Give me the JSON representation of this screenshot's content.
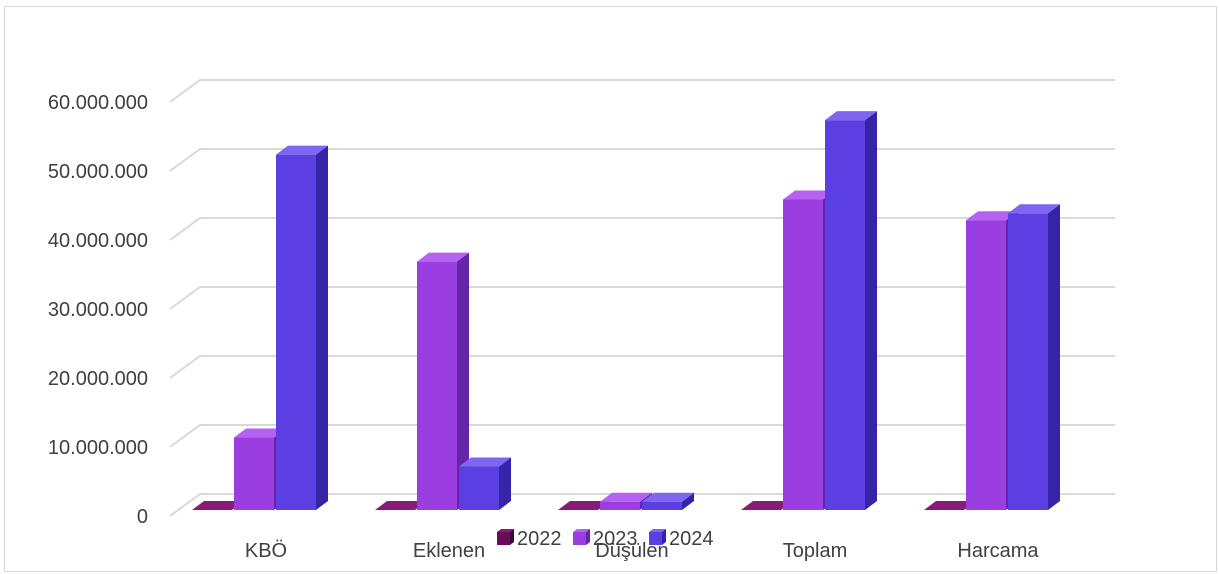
{
  "chart_data": {
    "type": "bar",
    "categories": [
      "KBÖ",
      "Eklenen",
      "Düşülen",
      "Toplam",
      "Harcama"
    ],
    "series": [
      {
        "name": "2022",
        "values": [
          0,
          0,
          0,
          0,
          0
        ]
      },
      {
        "name": "2023",
        "values": [
          10500000,
          36000000,
          1200000,
          45000000,
          42000000
        ]
      },
      {
        "name": "2024",
        "values": [
          51500000,
          6300000,
          1200000,
          56500000,
          43000000
        ]
      }
    ],
    "ylim": [
      0,
      60000000
    ],
    "yticks": [
      0,
      10000000,
      20000000,
      30000000,
      40000000,
      50000000,
      60000000
    ],
    "ytick_labels": [
      "0",
      "10.000.000",
      "20.000.000",
      "30.000.000",
      "40.000.000",
      "50.000.000",
      "60.000.000"
    ],
    "title": "",
    "xlabel": "",
    "ylabel": "",
    "grid": true,
    "legend_position": "bottom",
    "style": "3d-clustered-column",
    "colors": {
      "2022": {
        "front": "#6b0a5c",
        "side": "#3e0535",
        "top": "#8a1a78"
      },
      "2023": {
        "front": "#9a3ee2",
        "side": "#6425a8",
        "top": "#b562f2"
      },
      "2024": {
        "front": "#5b3fe2",
        "side": "#3524a8",
        "top": "#7f66f2"
      }
    },
    "gridline_color": "#d9d9d9"
  }
}
